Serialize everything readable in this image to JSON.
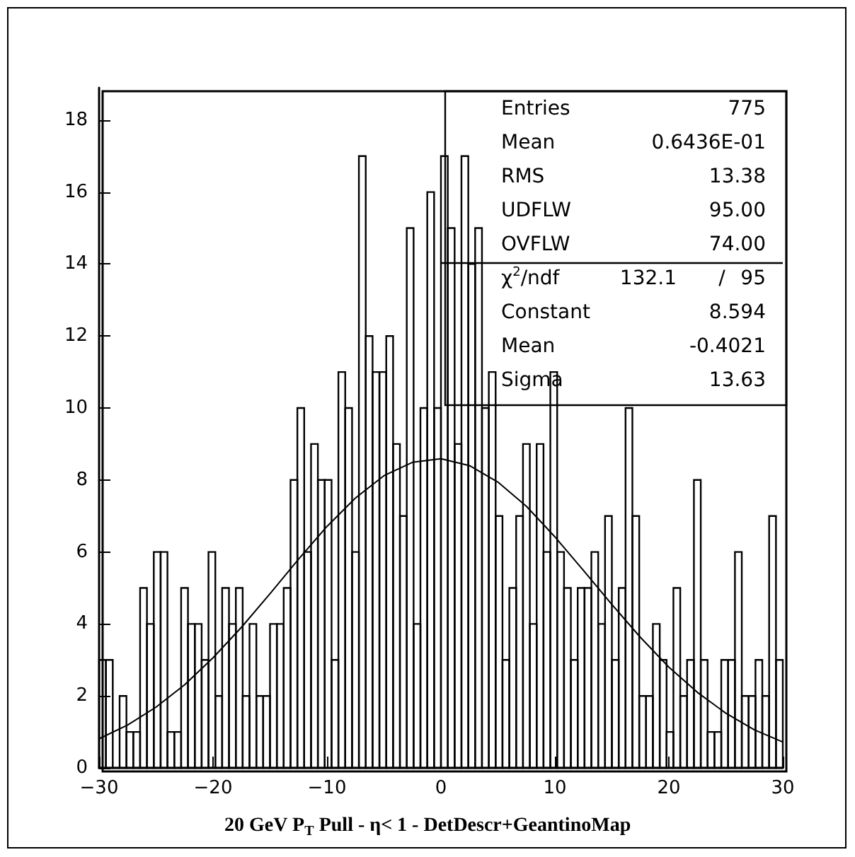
{
  "chart_data": {
    "type": "histogram",
    "title": "20 GeV P$_{T}$ Pull - η< 1 - DetDescr+GeantinoMap",
    "bins": [
      -30,
      -29.4,
      -28.8,
      -28.2,
      -27.6,
      -27,
      -26.4,
      -25.8,
      -25.2,
      -24.6,
      -24,
      -23.4,
      -22.8,
      -22.2,
      -21.6,
      -21,
      -20.4,
      -19.8,
      -19.2,
      -18.6,
      -18,
      -17.4,
      -16.8,
      -16.2,
      -15.6,
      -15,
      -14.4,
      -13.8,
      -13.2,
      -12.6,
      -12,
      -11.4,
      -10.8,
      -10.2,
      -9.6,
      -9,
      -8.4,
      -7.8,
      -7.2,
      -6.6,
      -6,
      -5.4,
      -4.8,
      -4.2,
      -3.6,
      -3,
      -2.4,
      -1.8,
      -1.2,
      -0.6,
      0,
      0.6,
      1.2,
      1.8,
      2.4,
      3,
      3.6,
      4.2,
      4.8,
      5.4,
      6,
      6.6,
      7.2,
      7.8,
      8.4,
      9,
      9.6,
      10.2,
      10.8,
      11.4,
      12,
      12.6,
      13.2,
      13.8,
      14.4,
      15,
      15.6,
      16.2,
      16.8,
      17.4,
      18,
      18.6,
      19.2,
      19.8,
      20.4,
      21,
      21.6,
      22.2,
      22.8,
      23.4,
      24,
      24.6,
      25.2,
      25.8,
      26.4,
      27,
      27.6,
      28.2,
      28.8,
      29.4,
      30
    ],
    "series": [
      {
        "color": "#000000",
        "values": [
          3,
          3,
          0,
          2,
          1,
          1,
          5,
          4,
          6,
          6,
          1,
          1,
          5,
          4,
          4,
          3,
          6,
          2,
          5,
          4,
          5,
          2,
          4,
          2,
          2,
          4,
          4,
          5,
          8,
          10,
          6,
          9,
          8,
          8,
          3,
          11,
          10,
          6,
          17,
          12,
          11,
          11,
          12,
          9,
          7,
          15,
          4,
          10,
          16,
          10,
          17,
          15,
          9,
          17,
          14,
          15,
          10,
          11,
          7,
          3,
          5,
          7,
          9,
          4,
          9,
          6,
          11,
          6,
          5,
          3,
          5,
          5,
          6,
          4,
          7,
          3,
          5,
          10,
          7,
          2,
          2,
          4,
          3,
          1,
          5,
          2,
          3,
          8,
          3,
          1,
          1,
          3,
          3,
          6,
          2,
          2,
          3,
          2,
          7,
          3
        ]
      },
      {
        "type": "line",
        "color": "#000000",
        "x": [
          -30,
          -27.5,
          -25,
          -22.5,
          -20,
          -17.5,
          -15,
          -12.5,
          -10,
          -7.5,
          -5,
          -2.5,
          0,
          2.5,
          5,
          7.5,
          10,
          12.5,
          15,
          17.5,
          20,
          22.5,
          25,
          27.5,
          30
        ],
        "values": [
          0.81,
          1.19,
          1.69,
          2.31,
          3.06,
          3.91,
          4.84,
          5.8,
          6.71,
          7.5,
          8.12,
          8.49,
          8.59,
          8.4,
          7.94,
          7.27,
          6.42,
          5.49,
          4.54,
          3.63,
          2.8,
          2.1,
          1.52,
          1.06,
          0.72
        ]
      }
    ],
    "xlim": [
      -30,
      30
    ],
    "xticks": [
      -30,
      -20,
      -10,
      0,
      10,
      20,
      30
    ],
    "ylim": [
      0,
      18.9
    ],
    "yticks": [
      0,
      2,
      4,
      6,
      8,
      10,
      12,
      14,
      16,
      18
    ],
    "annotations": [
      "Entries",
      "775",
      "Mean",
      "0.6436E-01",
      "RMS",
      "13.38",
      "UDFLW",
      "95.00",
      "OVFLW",
      "74.00",
      "χ$^{2}$/ndf",
      "132.1",
      "/",
      "95",
      "Constant",
      "8.594",
      "Mean",
      "-0.4021",
      "Sigma",
      "13.63"
    ]
  }
}
